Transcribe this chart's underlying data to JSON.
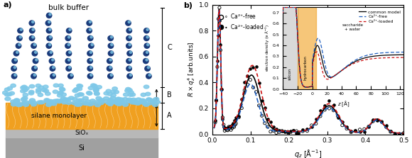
{
  "title_a": "a)",
  "title_b": "b)",
  "panel_a": {
    "bulk_buffer_label": "bulk buffer",
    "label_C": "C",
    "label_B": "B",
    "label_A": "A",
    "silane_label": "silane monolayer",
    "siox_label": "SiOₓ",
    "si_label": "Si",
    "orange_color": "#F0A020",
    "siox_color": "#B8B8B8",
    "si_color": "#A0A0A0",
    "dark_blue": "#1a3a7a",
    "light_blue": "#7EC8E8",
    "mid_blue": "#4090C8"
  },
  "panel_b": {
    "xlabel": "q_z",
    "ylabel": "R x qz4 [arb.units]",
    "xlim": [
      0.0,
      0.5
    ],
    "ylim": [
      0.0,
      1.0
    ],
    "xticks": [
      0.0,
      0.1,
      0.2,
      0.3,
      0.4,
      0.5
    ],
    "yticks": [
      0.0,
      0.2,
      0.4,
      0.6,
      0.8,
      1.0
    ],
    "legend_free": "Ca²⁺-free",
    "legend_loaded": "Ca²⁺-loaded",
    "common_model_color": "#000000",
    "free_color": "#2060C0",
    "loaded_color": "#CC1010",
    "inset": {
      "xlabel": "z [Å]",
      "xlim": [
        -40,
        125
      ],
      "ylim": [
        0.0,
        0.75
      ],
      "xticks": [
        -40,
        -20,
        0,
        20,
        40,
        60,
        80,
        100,
        120
      ],
      "silicon_label": "silicon",
      "hydrocarbon_label": "hydrocarbon",
      "saccharide_label": "saccharide\n+ water",
      "orange_color": "#F0A020",
      "gray_color": "#C0C0C0",
      "common_model_color": "#000000",
      "free_color": "#2060C0",
      "loaded_color": "#CC1010",
      "legend_common": "common model",
      "legend_free": "Ca²⁺-free",
      "legend_loaded": "Ca²⁺-loaded"
    }
  }
}
